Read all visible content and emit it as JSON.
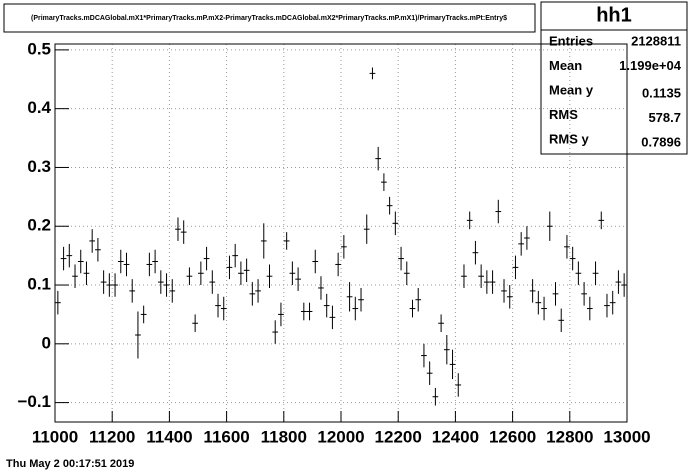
{
  "chart_data": {
    "type": "profile",
    "title": "(PrimaryTracks.mDCAGlobal.mX1*PrimaryTracks.mP.mX2-PrimaryTracks.mDCAGlobal.mX2*PrimaryTracks.mP.mX1)/PrimaryTracks.mPt:Entry$",
    "stats": {
      "name": "hh1",
      "rows": [
        [
          "Entries",
          "2128811"
        ],
        [
          "Mean",
          "1.199e+04"
        ],
        [
          "Mean y",
          "0.1135"
        ],
        [
          "RMS",
          "578.7"
        ],
        [
          "RMS y",
          "0.7896"
        ]
      ]
    },
    "timestamp": "Thu May  2 00:17:51 2019",
    "x": [
      11010,
      11030,
      11050,
      11070,
      11090,
      11110,
      11130,
      11150,
      11170,
      11190,
      11210,
      11230,
      11250,
      11270,
      11290,
      11310,
      11330,
      11350,
      11370,
      11390,
      11410,
      11430,
      11450,
      11470,
      11490,
      11510,
      11530,
      11550,
      11570,
      11590,
      11610,
      11630,
      11650,
      11670,
      11690,
      11710,
      11730,
      11750,
      11770,
      11790,
      11810,
      11830,
      11850,
      11870,
      11890,
      11910,
      11930,
      11950,
      11970,
      11990,
      12010,
      12030,
      12050,
      12070,
      12090,
      12110,
      12130,
      12150,
      12170,
      12190,
      12210,
      12230,
      12250,
      12270,
      12290,
      12310,
      12330,
      12350,
      12370,
      12390,
      12410,
      12430,
      12450,
      12470,
      12490,
      12510,
      12530,
      12550,
      12570,
      12590,
      12610,
      12630,
      12650,
      12670,
      12690,
      12710,
      12730,
      12750,
      12770,
      12790,
      12810,
      12830,
      12850,
      12870,
      12890,
      12910,
      12930,
      12950,
      12970,
      12990
    ],
    "values": [
      0.07,
      0.145,
      0.15,
      0.115,
      0.14,
      0.12,
      0.175,
      0.16,
      0.105,
      0.1,
      0.1,
      0.14,
      0.135,
      0.09,
      0.015,
      0.05,
      0.135,
      0.14,
      0.105,
      0.1,
      0.09,
      0.195,
      0.19,
      0.115,
      0.035,
      0.12,
      0.145,
      0.105,
      0.065,
      0.06,
      0.13,
      0.15,
      0.12,
      0.125,
      0.085,
      0.09,
      0.175,
      0.115,
      0.02,
      0.05,
      0.175,
      0.12,
      0.11,
      0.055,
      0.055,
      0.14,
      0.095,
      0.065,
      0.045,
      0.135,
      0.165,
      0.08,
      0.06,
      0.075,
      0.195,
      0.46,
      0.315,
      0.275,
      0.235,
      0.205,
      0.145,
      0.12,
      0.06,
      0.075,
      -0.02,
      -0.05,
      -0.09,
      0.035,
      -0.01,
      -0.035,
      -0.07,
      0.115,
      0.21,
      0.155,
      0.115,
      0.105,
      0.105,
      0.225,
      0.09,
      0.08,
      0.13,
      0.17,
      0.18,
      0.09,
      0.07,
      0.06,
      0.2,
      0.085,
      0.04,
      0.165,
      0.145,
      0.12,
      0.085,
      0.06,
      0.12,
      0.21,
      0.065,
      0.07,
      0.105,
      0.1
    ],
    "errors": [
      0.02,
      0.02,
      0.02,
      0.02,
      0.02,
      0.02,
      0.02,
      0.02,
      0.02,
      0.02,
      0.02,
      0.02,
      0.02,
      0.02,
      0.04,
      0.015,
      0.02,
      0.02,
      0.02,
      0.02,
      0.02,
      0.02,
      0.02,
      0.015,
      0.015,
      0.02,
      0.02,
      0.02,
      0.02,
      0.02,
      0.02,
      0.02,
      0.02,
      0.02,
      0.02,
      0.02,
      0.03,
      0.02,
      0.02,
      0.02,
      0.015,
      0.02,
      0.02,
      0.015,
      0.015,
      0.02,
      0.02,
      0.02,
      0.02,
      0.02,
      0.02,
      0.025,
      0.02,
      0.02,
      0.025,
      0.01,
      0.02,
      0.015,
      0.015,
      0.02,
      0.02,
      0.02,
      0.015,
      0.02,
      0.02,
      0.02,
      0.015,
      0.015,
      0.025,
      0.025,
      0.02,
      0.02,
      0.015,
      0.02,
      0.02,
      0.02,
      0.02,
      0.02,
      0.02,
      0.02,
      0.02,
      0.02,
      0.02,
      0.02,
      0.02,
      0.02,
      0.025,
      0.02,
      0.02,
      0.02,
      0.02,
      0.02,
      0.02,
      0.02,
      0.02,
      0.015,
      0.02,
      0.02,
      0.02,
      0.02
    ],
    "color": "#000000",
    "xlim": [
      11000,
      13000
    ],
    "ylim": [
      -0.133,
      0.51
    ],
    "xticks": [
      11000,
      11200,
      11400,
      11600,
      11800,
      12000,
      12200,
      12400,
      12600,
      12800,
      13000
    ],
    "yticks": [
      {
        "value": -0.1,
        "label": "−0.1"
      },
      0,
      0.1,
      0.2,
      0.3,
      0.4,
      0.5
    ],
    "grid": true
  }
}
